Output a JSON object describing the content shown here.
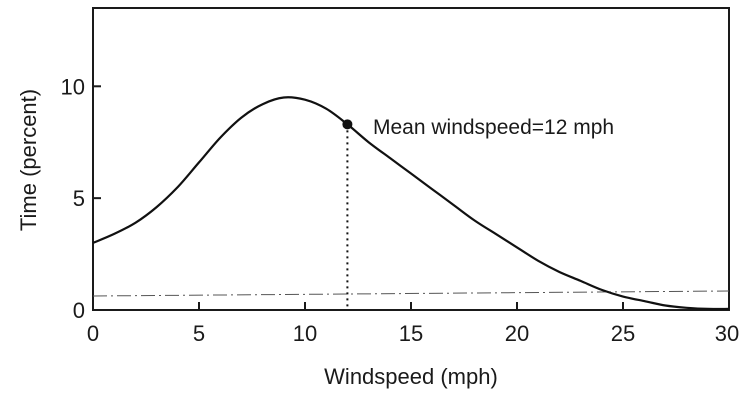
{
  "chart_data": {
    "type": "line",
    "xlabel": "Windspeed (mph)",
    "ylabel": "Time (percent)",
    "xlim": [
      0,
      30
    ],
    "ylim": [
      0,
      13.5
    ],
    "x_ticks": [
      0,
      5,
      10,
      15,
      20,
      25,
      30
    ],
    "y_ticks": [
      0,
      5,
      10
    ],
    "grid": false,
    "series": [
      {
        "x": [
          0,
          1,
          2,
          3,
          4,
          5,
          6,
          7,
          8,
          9,
          10,
          11,
          12,
          13,
          14,
          15,
          16,
          17,
          18,
          19,
          20,
          21,
          22,
          23,
          24,
          25,
          26,
          27,
          28,
          29,
          30
        ],
        "y": [
          3.0,
          3.4,
          3.9,
          4.6,
          5.5,
          6.6,
          7.7,
          8.6,
          9.2,
          9.5,
          9.4,
          9.0,
          8.3,
          7.5,
          6.8,
          6.1,
          5.4,
          4.7,
          4.0,
          3.4,
          2.8,
          2.2,
          1.7,
          1.3,
          0.9,
          0.6,
          0.4,
          0.2,
          0.1,
          0.05,
          0.05
        ]
      }
    ],
    "mean_point": {
      "x": 12,
      "y": 8.3
    },
    "annotation": "Mean  windspeed=12 mph"
  }
}
